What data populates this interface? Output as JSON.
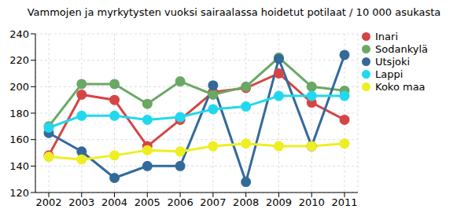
{
  "chart_data": {
    "type": "line",
    "title": "Vammojen ja myrkytysten vuoksi sairaalassa hoidetut potilaat / 10 000 asukasta",
    "categories": [
      "2002",
      "2003",
      "2004",
      "2005",
      "2006",
      "2007",
      "2008",
      "2009",
      "2010",
      "2011"
    ],
    "series": [
      {
        "name": "Inari",
        "color": "#d64545",
        "values": [
          148,
          194,
          190,
          155,
          175,
          196,
          199,
          210,
          188,
          175
        ]
      },
      {
        "name": "Sodankylä",
        "color": "#6aa864",
        "values": [
          170,
          202,
          202,
          187,
          204,
          194,
          200,
          222,
          200,
          197
        ]
      },
      {
        "name": "Utsjoki",
        "color": "#336a9a",
        "values": [
          165,
          151,
          131,
          140,
          140,
          201,
          128,
          221,
          155,
          224
        ]
      },
      {
        "name": "Lappi",
        "color": "#22d8ee",
        "values": [
          169,
          178,
          178,
          175,
          177,
          183,
          185,
          193,
          193,
          193
        ]
      },
      {
        "name": "Koko maa",
        "color": "#eeee22",
        "values": [
          147,
          145,
          148,
          152,
          151,
          155,
          157,
          155,
          155,
          157
        ]
      }
    ],
    "ylim": [
      120,
      240
    ],
    "yticks": [
      120,
      140,
      160,
      180,
      200,
      220,
      240
    ],
    "grid": true,
    "legend": "right",
    "marker": "circle"
  }
}
